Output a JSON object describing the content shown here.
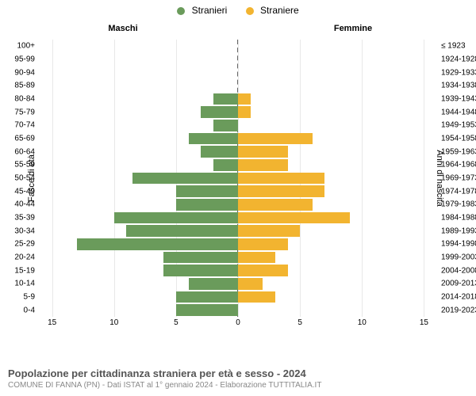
{
  "legend": {
    "male": {
      "label": "Stranieri",
      "color": "#6a9b5b"
    },
    "female": {
      "label": "Straniere",
      "color": "#f2b430"
    }
  },
  "headers": {
    "left": "Maschi",
    "right": "Femmine"
  },
  "y_left_title": "Fasce di età",
  "y_right_title": "Anni di nascita",
  "x_max": 16,
  "x_ticks": [
    15,
    10,
    5,
    0,
    5,
    10,
    15
  ],
  "grid_color": "#e8e8e8",
  "rows": [
    {
      "age": "100+",
      "birth": "≤ 1923",
      "m": 0,
      "f": 0
    },
    {
      "age": "95-99",
      "birth": "1924-1928",
      "m": 0,
      "f": 0
    },
    {
      "age": "90-94",
      "birth": "1929-1933",
      "m": 0,
      "f": 0
    },
    {
      "age": "85-89",
      "birth": "1934-1938",
      "m": 0,
      "f": 0
    },
    {
      "age": "80-84",
      "birth": "1939-1943",
      "m": 2,
      "f": 1
    },
    {
      "age": "75-79",
      "birth": "1944-1948",
      "m": 3,
      "f": 1
    },
    {
      "age": "70-74",
      "birth": "1949-1953",
      "m": 2,
      "f": 0
    },
    {
      "age": "65-69",
      "birth": "1954-1958",
      "m": 4,
      "f": 6
    },
    {
      "age": "60-64",
      "birth": "1959-1963",
      "m": 3,
      "f": 4
    },
    {
      "age": "55-59",
      "birth": "1964-1968",
      "m": 2,
      "f": 4
    },
    {
      "age": "50-54",
      "birth": "1969-1973",
      "m": 8.5,
      "f": 7
    },
    {
      "age": "45-49",
      "birth": "1974-1978",
      "m": 5,
      "f": 7
    },
    {
      "age": "40-44",
      "birth": "1979-1983",
      "m": 5,
      "f": 6
    },
    {
      "age": "35-39",
      "birth": "1984-1988",
      "m": 10,
      "f": 9
    },
    {
      "age": "30-34",
      "birth": "1989-1993",
      "m": 9,
      "f": 5
    },
    {
      "age": "25-29",
      "birth": "1994-1998",
      "m": 13,
      "f": 4
    },
    {
      "age": "20-24",
      "birth": "1999-2003",
      "m": 6,
      "f": 3
    },
    {
      "age": "15-19",
      "birth": "2004-2008",
      "m": 6,
      "f": 4
    },
    {
      "age": "10-14",
      "birth": "2009-2013",
      "m": 4,
      "f": 2
    },
    {
      "age": "5-9",
      "birth": "2014-2018",
      "m": 5,
      "f": 3
    },
    {
      "age": "0-4",
      "birth": "2019-2023",
      "m": 5,
      "f": 0
    }
  ],
  "footer": {
    "title": "Popolazione per cittadinanza straniera per età e sesso - 2024",
    "subtitle": "COMUNE DI FANNA (PN) - Dati ISTAT al 1° gennaio 2024 - Elaborazione TUTTITALIA.IT"
  }
}
